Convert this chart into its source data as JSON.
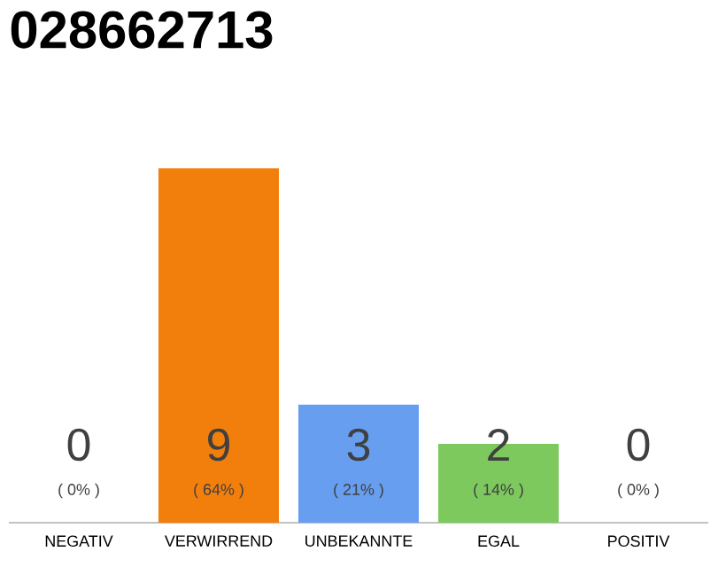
{
  "chart_data": {
    "type": "bar",
    "title": "028662713",
    "categories": [
      "NEGATIV",
      "VERWIRREND",
      "UNBEKANNTE",
      "EGAL",
      "POSITIV"
    ],
    "values": [
      0,
      9,
      3,
      2,
      0
    ],
    "colors": [
      "#cccccc",
      "#f27f0c",
      "#679ef0",
      "#7dc95e",
      "#cccccc"
    ],
    "value_labels": [
      "0",
      "9",
      "3",
      "2",
      "0"
    ],
    "annotations": [
      {
        "text": "( 0% )",
        "x": "NEGATIV",
        "y": 0
      },
      {
        "text": "( 64% )",
        "x": "VERWIRREND",
        "y": 0
      },
      {
        "text": "( 21% )",
        "x": "UNBEKANNTE",
        "y": 0
      },
      {
        "text": "( 14% )",
        "x": "EGAL",
        "y": 0
      },
      {
        "text": "( 0% )",
        "x": "POSITIV",
        "y": 0
      }
    ]
  }
}
